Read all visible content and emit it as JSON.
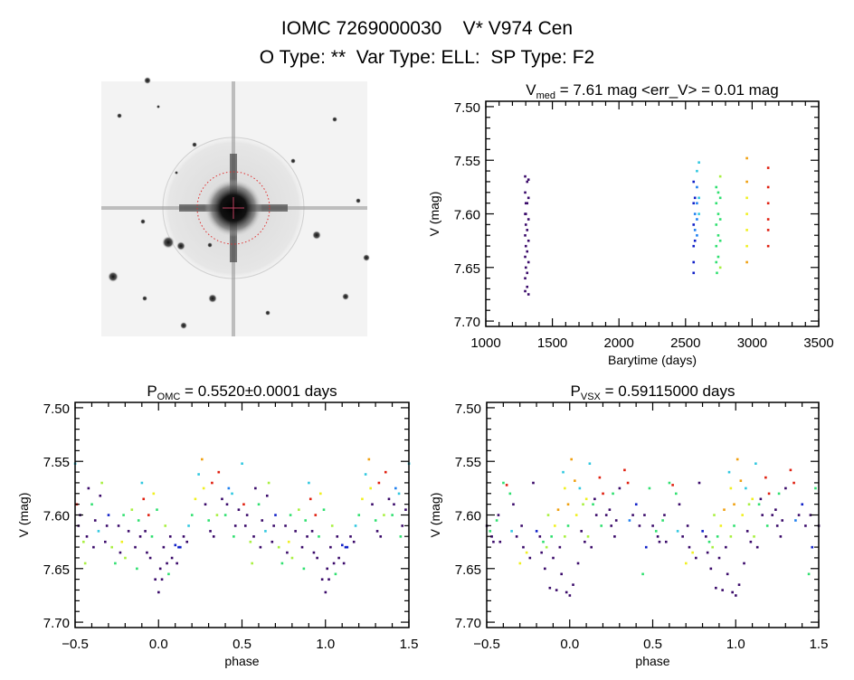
{
  "header": {
    "title": "IOMC 7269000030    V* V974 Cen",
    "subtitle": "O Type: **  Var Type: ELL:  SP Type: F2"
  },
  "image": {
    "description_labels": [],
    "marker_color": "#e03030"
  },
  "colors": [
    "#3a0a6a",
    "#1020c8",
    "#2080f0",
    "#30c8e0",
    "#30e070",
    "#a8f040",
    "#f0f020",
    "#f0a010",
    "#e02010"
  ],
  "chart_data": [
    {
      "id": "lightcurve",
      "type": "scatter",
      "title_main": "V",
      "title_sub": "med",
      "title_rest": " = 7.61 mag <err_V> = 0.01 mag",
      "xlabel": "Barytime (days)",
      "ylabel": "V (mag)",
      "xlim": [
        1000,
        3500
      ],
      "ylim": [
        7.705,
        7.495
      ],
      "xticks": [
        1000,
        1500,
        2000,
        2500,
        3000,
        3500
      ],
      "yticks": [
        7.5,
        7.55,
        7.6,
        7.65,
        7.7
      ],
      "ytick_labels": [
        "7.50",
        "7.55",
        "7.60",
        "7.65",
        "7.70"
      ],
      "points": [
        [
          1295,
          7.565,
          0
        ],
        [
          1295,
          7.58,
          0
        ],
        [
          1295,
          7.6,
          0
        ],
        [
          1295,
          7.62,
          0
        ],
        [
          1295,
          7.64,
          0
        ],
        [
          1295,
          7.66,
          0
        ],
        [
          1295,
          7.672,
          0
        ],
        [
          1300,
          7.59,
          0
        ],
        [
          1300,
          7.61,
          0
        ],
        [
          1300,
          7.63,
          0
        ],
        [
          1300,
          7.65,
          0
        ],
        [
          1300,
          7.6,
          0
        ],
        [
          1310,
          7.57,
          0
        ],
        [
          1310,
          7.59,
          0
        ],
        [
          1310,
          7.615,
          0
        ],
        [
          1310,
          7.635,
          0
        ],
        [
          1310,
          7.655,
          0
        ],
        [
          1310,
          7.668,
          0
        ],
        [
          1320,
          7.568,
          0
        ],
        [
          1320,
          7.585,
          0
        ],
        [
          1320,
          7.605,
          0
        ],
        [
          1320,
          7.625,
          0
        ],
        [
          1320,
          7.645,
          0
        ],
        [
          1320,
          7.675,
          0
        ],
        [
          2560,
          7.57,
          1
        ],
        [
          2560,
          7.59,
          1
        ],
        [
          2560,
          7.61,
          1
        ],
        [
          2560,
          7.63,
          1
        ],
        [
          2560,
          7.645,
          1
        ],
        [
          2560,
          7.655,
          1
        ],
        [
          2570,
          7.585,
          1
        ],
        [
          2570,
          7.6,
          2
        ],
        [
          2570,
          7.615,
          2
        ],
        [
          2570,
          7.625,
          1
        ],
        [
          2585,
          7.56,
          3
        ],
        [
          2585,
          7.575,
          2
        ],
        [
          2585,
          7.59,
          2
        ],
        [
          2585,
          7.605,
          2
        ],
        [
          2585,
          7.62,
          2
        ],
        [
          2600,
          7.552,
          3
        ],
        [
          2600,
          7.585,
          3
        ],
        [
          2600,
          7.6,
          3
        ],
        [
          2730,
          7.575,
          4
        ],
        [
          2730,
          7.59,
          4
        ],
        [
          2730,
          7.61,
          4
        ],
        [
          2730,
          7.63,
          4
        ],
        [
          2730,
          7.645,
          4
        ],
        [
          2735,
          7.655,
          4
        ],
        [
          2745,
          7.58,
          4
        ],
        [
          2745,
          7.6,
          4
        ],
        [
          2745,
          7.62,
          4
        ],
        [
          2745,
          7.64,
          4
        ],
        [
          2760,
          7.565,
          5
        ],
        [
          2760,
          7.585,
          4
        ],
        [
          2760,
          7.605,
          4
        ],
        [
          2760,
          7.625,
          4
        ],
        [
          2760,
          7.65,
          5
        ],
        [
          2960,
          7.548,
          7
        ],
        [
          2960,
          7.57,
          7
        ],
        [
          2960,
          7.585,
          6
        ],
        [
          2960,
          7.6,
          6
        ],
        [
          2960,
          7.615,
          6
        ],
        [
          2960,
          7.63,
          6
        ],
        [
          2960,
          7.645,
          7
        ],
        [
          3120,
          7.557,
          8
        ],
        [
          3120,
          7.575,
          8
        ],
        [
          3120,
          7.59,
          8
        ],
        [
          3120,
          7.605,
          8
        ],
        [
          3120,
          7.615,
          8
        ],
        [
          3120,
          7.63,
          8
        ]
      ]
    },
    {
      "id": "phase-omc",
      "type": "scatter",
      "title_main": "P",
      "title_sub": "OMC",
      "title_rest": " = 0.5520±0.0001 days",
      "xlabel": "phase",
      "ylabel": "V (mag)",
      "xlim": [
        -0.5,
        1.5
      ],
      "ylim": [
        7.705,
        7.495
      ],
      "xticks": [
        -0.5,
        0.0,
        0.5,
        1.0,
        1.5
      ],
      "xtick_labels": [
        "−0.5",
        "0.0",
        "0.5",
        "1.0",
        "1.5"
      ],
      "yticks": [
        7.5,
        7.55,
        7.6,
        7.65,
        7.7
      ],
      "ytick_labels": [
        "7.50",
        "7.55",
        "7.60",
        "7.65",
        "7.70"
      ],
      "points": [
        [
          0.0,
          7.672,
          0
        ],
        [
          0.02,
          7.66,
          0
        ],
        [
          0.98,
          7.66,
          0
        ],
        [
          0.05,
          7.645,
          0
        ],
        [
          0.03,
          7.63,
          0
        ],
        [
          0.95,
          7.64,
          0
        ],
        [
          0.08,
          7.64,
          0
        ],
        [
          0.1,
          7.628,
          1
        ],
        [
          0.12,
          7.63,
          1
        ],
        [
          0.15,
          7.62,
          0
        ],
        [
          0.18,
          7.61,
          3
        ],
        [
          0.2,
          7.6,
          4
        ],
        [
          0.22,
          7.585,
          6
        ],
        [
          0.24,
          7.562,
          3
        ],
        [
          0.26,
          7.548,
          7
        ],
        [
          0.28,
          7.59,
          0
        ],
        [
          0.3,
          7.605,
          4
        ],
        [
          0.32,
          7.57,
          8
        ],
        [
          0.33,
          7.62,
          0
        ],
        [
          0.35,
          7.6,
          5
        ],
        [
          0.38,
          7.585,
          0
        ],
        [
          0.4,
          7.6,
          4
        ],
        [
          0.42,
          7.575,
          2
        ],
        [
          0.44,
          7.58,
          3
        ],
        [
          0.46,
          7.61,
          0
        ],
        [
          0.48,
          7.595,
          0
        ],
        [
          0.5,
          7.552,
          3
        ],
        [
          0.51,
          7.59,
          8
        ],
        [
          0.53,
          7.6,
          0
        ],
        [
          0.55,
          7.625,
          5
        ],
        [
          0.56,
          7.645,
          5
        ],
        [
          0.58,
          7.575,
          0
        ],
        [
          0.6,
          7.59,
          4
        ],
        [
          0.62,
          7.605,
          0
        ],
        [
          0.64,
          7.615,
          3
        ],
        [
          0.66,
          7.57,
          5
        ],
        [
          0.68,
          7.625,
          0
        ],
        [
          0.7,
          7.6,
          1
        ],
        [
          0.72,
          7.63,
          5
        ],
        [
          0.74,
          7.645,
          4
        ],
        [
          0.76,
          7.61,
          0
        ],
        [
          0.78,
          7.625,
          6
        ],
        [
          0.8,
          7.64,
          5
        ],
        [
          0.82,
          7.615,
          0
        ],
        [
          0.84,
          7.595,
          5
        ],
        [
          0.86,
          7.63,
          0
        ],
        [
          0.88,
          7.605,
          4
        ],
        [
          0.9,
          7.57,
          3
        ],
        [
          0.91,
          7.585,
          8
        ],
        [
          0.92,
          7.615,
          0
        ],
        [
          0.94,
          7.6,
          8
        ],
        [
          0.96,
          7.62,
          4
        ],
        [
          0.97,
          7.58,
          6
        ],
        [
          0.99,
          7.595,
          4
        ],
        [
          0.06,
          7.655,
          4
        ],
        [
          0.13,
          7.63,
          1
        ],
        [
          0.27,
          7.575,
          6
        ],
        [
          0.36,
          7.56,
          8
        ],
        [
          0.65,
          7.582,
          0
        ],
        [
          0.87,
          7.65,
          4
        ],
        [
          0.07,
          7.62,
          0
        ],
        [
          0.11,
          7.645,
          0
        ],
        [
          0.17,
          7.625,
          0
        ],
        [
          0.31,
          7.615,
          0
        ],
        [
          0.41,
          7.59,
          0
        ],
        [
          0.52,
          7.61,
          0
        ],
        [
          0.57,
          7.62,
          0
        ],
        [
          0.69,
          7.61,
          0
        ],
        [
          0.77,
          7.635,
          0
        ],
        [
          0.89,
          7.62,
          0
        ],
        [
          0.93,
          7.635,
          0
        ],
        [
          0.01,
          7.65,
          0
        ],
        [
          0.04,
          7.61,
          5
        ],
        [
          0.45,
          7.62,
          4
        ],
        [
          0.61,
          7.63,
          0
        ],
        [
          0.79,
          7.6,
          4
        ]
      ]
    },
    {
      "id": "phase-vsx",
      "type": "scatter",
      "title_main": "P",
      "title_sub": "VSX",
      "title_rest": " = 0.59115000 days",
      "xlabel": "phase",
      "ylabel": "V (mag)",
      "xlim": [
        -0.5,
        1.5
      ],
      "ylim": [
        7.705,
        7.495
      ],
      "xticks": [
        -0.5,
        0.0,
        0.5,
        1.0,
        1.5
      ],
      "xtick_labels": [
        "−0.5",
        "0.0",
        "0.5",
        "1.0",
        "1.5"
      ],
      "yticks": [
        7.5,
        7.55,
        7.6,
        7.65,
        7.7
      ],
      "ytick_labels": [
        "7.50",
        "7.55",
        "7.60",
        "7.65",
        "7.70"
      ],
      "points": [
        [
          0.0,
          7.675,
          0
        ],
        [
          0.98,
          7.672,
          0
        ],
        [
          0.88,
          7.668,
          0
        ],
        [
          0.92,
          7.67,
          0
        ],
        [
          0.02,
          7.665,
          0
        ],
        [
          0.95,
          7.655,
          0
        ],
        [
          0.05,
          7.645,
          0
        ],
        [
          0.9,
          7.64,
          0
        ],
        [
          0.94,
          7.63,
          0
        ],
        [
          0.97,
          7.62,
          5
        ],
        [
          0.99,
          7.61,
          4
        ],
        [
          0.01,
          7.548,
          7
        ],
        [
          0.03,
          7.568,
          7
        ],
        [
          0.96,
          7.56,
          3
        ],
        [
          0.97,
          7.575,
          6
        ],
        [
          0.99,
          7.59,
          7
        ],
        [
          0.04,
          7.6,
          6
        ],
        [
          0.06,
          7.575,
          3
        ],
        [
          0.08,
          7.59,
          5
        ],
        [
          0.1,
          7.585,
          6
        ],
        [
          0.12,
          7.552,
          3
        ],
        [
          0.14,
          7.59,
          4
        ],
        [
          0.16,
          7.6,
          0
        ],
        [
          0.18,
          7.565,
          8
        ],
        [
          0.2,
          7.58,
          8
        ],
        [
          0.22,
          7.6,
          0
        ],
        [
          0.24,
          7.595,
          0
        ],
        [
          0.26,
          7.58,
          4
        ],
        [
          0.28,
          7.605,
          0
        ],
        [
          0.3,
          7.575,
          0
        ],
        [
          0.33,
          7.558,
          8
        ],
        [
          0.35,
          7.57,
          8
        ],
        [
          0.38,
          7.6,
          0
        ],
        [
          0.4,
          7.59,
          1
        ],
        [
          0.42,
          7.61,
          0
        ],
        [
          0.44,
          7.655,
          4
        ],
        [
          0.46,
          7.63,
          1
        ],
        [
          0.48,
          7.575,
          4
        ],
        [
          0.5,
          7.61,
          0
        ],
        [
          0.52,
          7.615,
          4
        ],
        [
          0.54,
          7.625,
          0
        ],
        [
          0.56,
          7.605,
          4
        ],
        [
          0.58,
          7.625,
          0
        ],
        [
          0.6,
          7.57,
          4
        ],
        [
          0.62,
          7.572,
          8
        ],
        [
          0.64,
          7.58,
          4
        ],
        [
          0.66,
          7.59,
          0
        ],
        [
          0.68,
          7.62,
          0
        ],
        [
          0.7,
          7.645,
          6
        ],
        [
          0.72,
          7.63,
          0
        ],
        [
          0.74,
          7.635,
          6
        ],
        [
          0.76,
          7.64,
          0
        ],
        [
          0.78,
          7.57,
          0
        ],
        [
          0.8,
          7.615,
          1
        ],
        [
          0.82,
          7.62,
          0
        ],
        [
          0.84,
          7.625,
          4
        ],
        [
          0.86,
          7.63,
          5
        ],
        [
          0.87,
          7.6,
          5
        ],
        [
          0.89,
          7.62,
          4
        ],
        [
          0.91,
          7.61,
          6
        ],
        [
          0.93,
          7.595,
          7
        ],
        [
          0.07,
          7.615,
          0
        ],
        [
          0.09,
          7.625,
          0
        ],
        [
          0.11,
          7.62,
          5
        ],
        [
          0.15,
          7.585,
          0
        ],
        [
          0.25,
          7.61,
          0
        ],
        [
          0.36,
          7.605,
          2
        ],
        [
          0.45,
          7.6,
          0
        ],
        [
          0.53,
          7.62,
          0
        ],
        [
          0.65,
          7.615,
          3
        ],
        [
          0.71,
          7.61,
          0
        ],
        [
          0.83,
          7.635,
          0
        ],
        [
          0.85,
          7.65,
          0
        ],
        [
          0.13,
          7.63,
          0
        ],
        [
          0.19,
          7.61,
          4
        ],
        [
          0.27,
          7.62,
          0
        ],
        [
          0.57,
          7.6,
          0
        ]
      ]
    }
  ]
}
